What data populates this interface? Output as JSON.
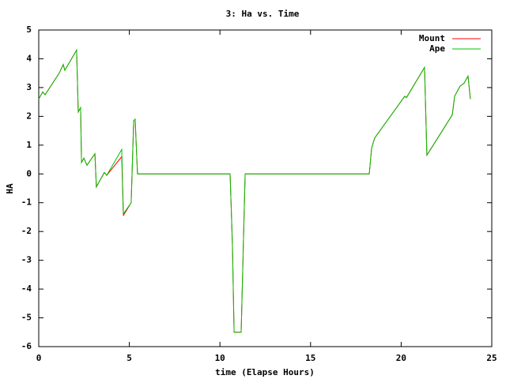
{
  "chart_data": {
    "type": "line",
    "title": "3: Ha vs. Time",
    "x_label": "time (Elapse Hours)",
    "y_label": "HA",
    "x": [
      0,
      0.22,
      0.35,
      1.13,
      1.35,
      1.44,
      2.09,
      2.18,
      2.31,
      2.36,
      2.49,
      2.66,
      3.1,
      3.18,
      3.62,
      3.75,
      4.58,
      4.67,
      4.71,
      5.1,
      5.24,
      5.32,
      5.45,
      10.56,
      10.69,
      10.78,
      11.17,
      11.39,
      18.24,
      18.37,
      18.54,
      20.2,
      20.29,
      21.29,
      21.42,
      22.82,
      22.95,
      23.25,
      23.47,
      23.69,
      23.82
    ],
    "series": [
      {
        "name": "Mount",
        "color": "#ff0000",
        "values": [
          2.6,
          2.85,
          2.75,
          3.5,
          3.8,
          3.6,
          4.3,
          2.15,
          2.3,
          0.4,
          0.55,
          0.3,
          0.7,
          -0.45,
          0.05,
          -0.05,
          0.6,
          -1.45,
          -1.4,
          -1.0,
          1.85,
          1.9,
          0,
          0,
          -2.5,
          -5.5,
          -5.5,
          0,
          0,
          0.9,
          1.25,
          2.7,
          2.65,
          3.7,
          0.65,
          2.05,
          2.7,
          3.05,
          3.15,
          3.4,
          2.6
        ]
      },
      {
        "name": "Ape",
        "color": "#00c000",
        "values": [
          2.6,
          2.85,
          2.75,
          3.5,
          3.8,
          3.6,
          4.3,
          2.15,
          2.3,
          0.4,
          0.55,
          0.3,
          0.7,
          -0.45,
          0.05,
          -0.05,
          0.85,
          -1.4,
          -1.35,
          -1.0,
          1.85,
          1.9,
          0,
          0,
          -2.5,
          -5.5,
          -5.5,
          0,
          0,
          0.9,
          1.25,
          2.7,
          2.65,
          3.7,
          0.65,
          2.05,
          2.7,
          3.05,
          3.15,
          3.4,
          2.6
        ]
      }
    ],
    "xlim": [
      0,
      25
    ],
    "ylim": [
      -6,
      5
    ],
    "xticks": [
      0,
      5,
      10,
      15,
      20,
      25
    ],
    "yticks": [
      -6,
      -5,
      -4,
      -3,
      -2,
      -1,
      0,
      1,
      2,
      3,
      4,
      5
    ],
    "legend": "upper right"
  }
}
